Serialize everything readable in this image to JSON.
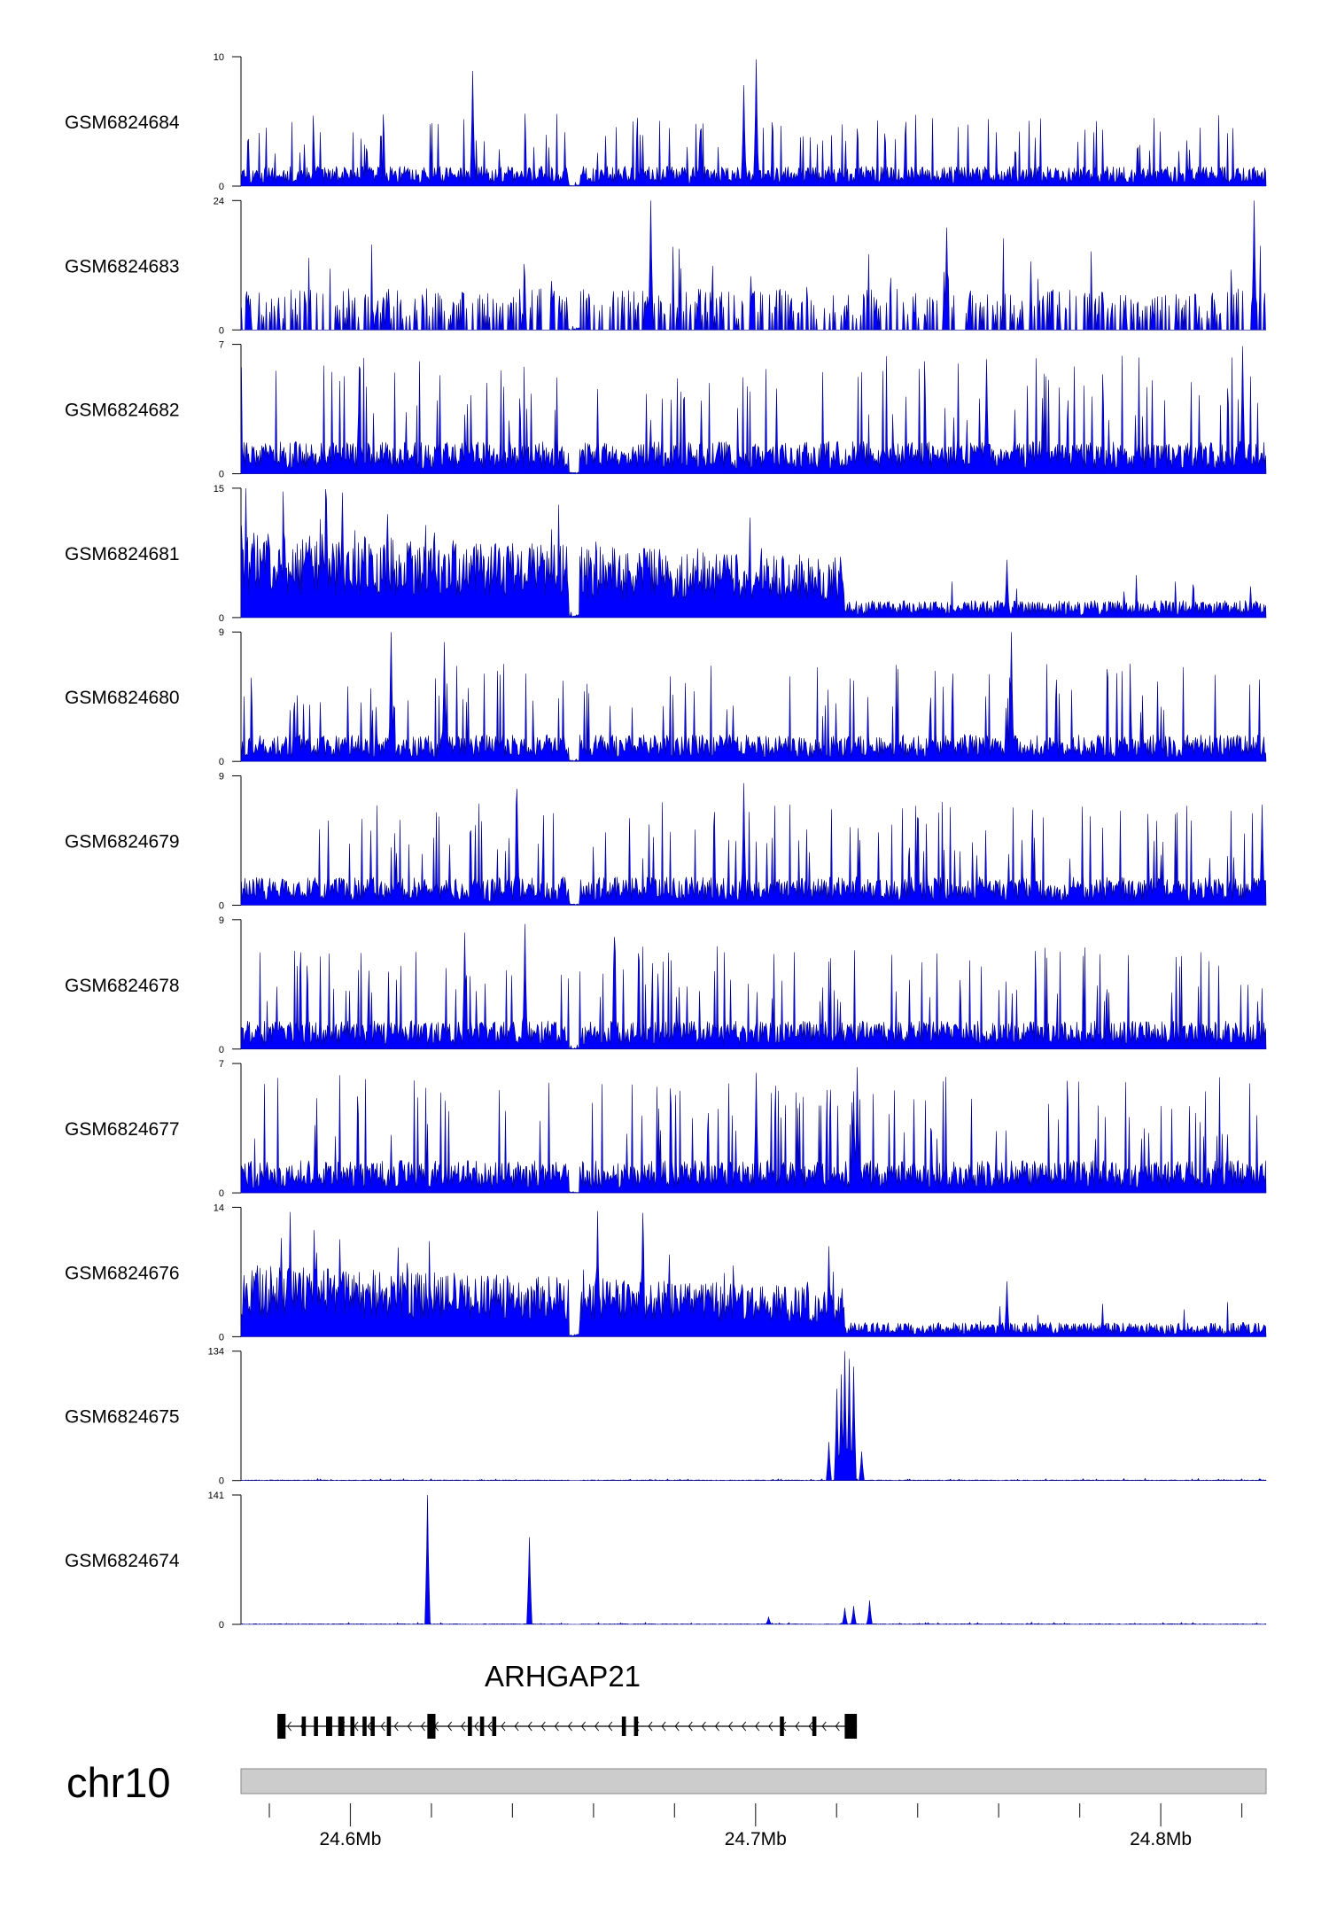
{
  "chart_data": {
    "type": "genome-track-area",
    "chromosome": "chr10",
    "x_range_bp": [
      24573000,
      24826000
    ],
    "x_ticks": [
      {
        "value": 24600000,
        "label": "24.6Mb"
      },
      {
        "value": 24700000,
        "label": "24.7Mb"
      },
      {
        "value": 24800000,
        "label": "24.8Mb"
      }
    ],
    "color": "#0000ff",
    "edge_color": "#00008b",
    "tracks": [
      {
        "name": "GSM6824684",
        "ymin": 0,
        "ymax": 10,
        "profile": "noise",
        "level": 1.4,
        "seed": 11,
        "peaks": [
          [
            24700000,
            9.8
          ],
          [
            24697000,
            7.8
          ],
          [
            24630000,
            8.9
          ]
        ]
      },
      {
        "name": "GSM6824683",
        "ymin": 0,
        "ymax": 24,
        "profile": "sparse",
        "level": 3.5,
        "seed": 23,
        "peaks": [
          [
            24674000,
            24
          ],
          [
            24823000,
            24
          ],
          [
            24747000,
            19
          ]
        ]
      },
      {
        "name": "GSM6824682",
        "ymin": 0,
        "ymax": 7,
        "profile": "noise",
        "level": 1.6,
        "seed": 31,
        "peaks": [
          [
            24820000,
            6.9
          ],
          [
            24602000,
            5.8
          ],
          [
            24757000,
            6.2
          ]
        ]
      },
      {
        "name": "GSM6824681",
        "ymin": 0,
        "ymax": 15,
        "profile": "high-left",
        "level": 6.5,
        "seed": 47,
        "cutoff": 24722000,
        "peaks": [
          [
            24598000,
            14.5
          ],
          [
            24594000,
            13.8
          ],
          [
            24762000,
            6.7
          ],
          [
            24609000,
            12
          ]
        ]
      },
      {
        "name": "GSM6824680",
        "ymin": 0,
        "ymax": 9,
        "profile": "noise",
        "level": 1.7,
        "seed": 53,
        "peaks": [
          [
            24610000,
            9
          ],
          [
            24763000,
            9
          ],
          [
            24623000,
            8.3
          ]
        ]
      },
      {
        "name": "GSM6824679",
        "ymin": 0,
        "ymax": 9,
        "profile": "noise",
        "level": 1.8,
        "seed": 61,
        "peaks": [
          [
            24641000,
            8.1
          ],
          [
            24697000,
            8.5
          ],
          [
            24825000,
            7
          ]
        ]
      },
      {
        "name": "GSM6824678",
        "ymin": 0,
        "ymax": 9,
        "profile": "noise",
        "level": 1.8,
        "seed": 71,
        "peaks": [
          [
            24628000,
            8.1
          ],
          [
            24643000,
            8.7
          ],
          [
            24665000,
            7.8
          ]
        ]
      },
      {
        "name": "GSM6824677",
        "ymin": 0,
        "ymax": 7,
        "profile": "noise",
        "level": 1.6,
        "seed": 83,
        "peaks": [
          [
            24725000,
            6.8
          ],
          [
            24700000,
            6.5
          ],
          [
            24724000,
            5.5
          ]
        ]
      },
      {
        "name": "GSM6824676",
        "ymin": 0,
        "ymax": 14,
        "profile": "high-left",
        "level": 5,
        "seed": 97,
        "cutoff": 24722000,
        "peaks": [
          [
            24585000,
            13.5
          ],
          [
            24661000,
            13.6
          ],
          [
            24672000,
            13.4
          ],
          [
            24718000,
            9.8
          ],
          [
            24762000,
            6
          ]
        ]
      },
      {
        "name": "GSM6824675",
        "ymin": 0,
        "ymax": 134,
        "profile": "flat",
        "level": 1,
        "seed": 101,
        "peaks": [
          [
            24718000,
            40
          ],
          [
            24720000,
            95
          ],
          [
            24722000,
            134
          ],
          [
            24723000,
            126
          ],
          [
            24724000,
            118
          ],
          [
            24721000,
            110
          ],
          [
            24726000,
            30
          ]
        ]
      },
      {
        "name": "GSM6824674",
        "ymin": 0,
        "ymax": 141,
        "profile": "flat",
        "level": 1,
        "seed": 113,
        "peaks": [
          [
            24619000,
            141
          ],
          [
            24644000,
            95
          ],
          [
            24722000,
            18
          ],
          [
            24724000,
            20
          ],
          [
            24728000,
            26
          ],
          [
            24703000,
            8
          ]
        ]
      }
    ],
    "gene": {
      "name": "ARHGAP21",
      "start": 24582000,
      "end": 24725000,
      "strand": "-",
      "exons": [
        [
          24582000,
          24584000
        ],
        [
          24588000,
          24589000
        ],
        [
          24591000,
          24592000
        ],
        [
          24594000,
          24595500
        ],
        [
          24597000,
          24598500
        ],
        [
          24600000,
          24601000
        ],
        [
          24603000,
          24604000
        ],
        [
          24605000,
          24606000
        ],
        [
          24609000,
          24610000
        ],
        [
          24619000,
          24621000
        ],
        [
          24629000,
          24630000
        ],
        [
          24632000,
          24633000
        ],
        [
          24635000,
          24636000
        ],
        [
          24667000,
          24668000
        ],
        [
          24670000,
          24671000
        ],
        [
          24706000,
          24707000
        ],
        [
          24714000,
          24715000
        ],
        [
          24722000,
          24725000
        ]
      ]
    }
  }
}
